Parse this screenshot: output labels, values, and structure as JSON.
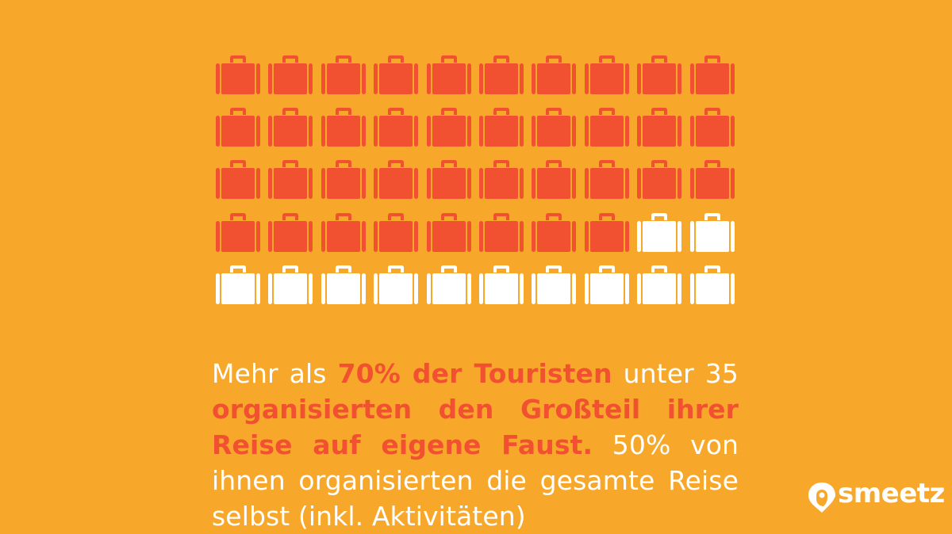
{
  "colors": {
    "background": "#f7a82a",
    "filled": "#f25131",
    "empty": "#ffffff",
    "text": "#ffffff",
    "highlight": "#f25131"
  },
  "icon_grid": {
    "icon": "suitcase-icon",
    "total": 50,
    "filled": 38,
    "columns": 10,
    "rows": 5
  },
  "caption": {
    "segments": [
      {
        "text": "Mehr als ",
        "highlight": false
      },
      {
        "text": "70% der Touristen",
        "highlight": true
      },
      {
        "text": " unter 35 ",
        "highlight": false
      },
      {
        "text": "organisierten den Großteil ihrer Reise auf eigene Faust.",
        "highlight": true
      },
      {
        "text": " 50% von ihnen organisierten die gesamte Reise selbst (inkl. Aktivitäten)",
        "highlight": false
      }
    ]
  },
  "logo": {
    "text": "smeetz",
    "icon": "location-pin-icon"
  }
}
